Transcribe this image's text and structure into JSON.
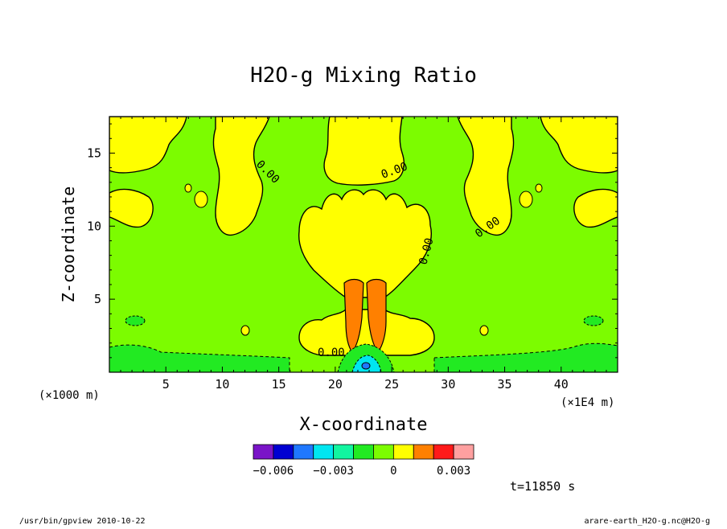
{
  "chart_data": {
    "type": "heatmap",
    "title": "H2O-g Mixing Ratio",
    "xlabel": "X-coordinate",
    "ylabel": "Z-coordinate",
    "x_unit_left": "(×1000 m)",
    "x_unit_right": "(×1E4 m)",
    "xlim": [
      0,
      45
    ],
    "ylim": [
      0,
      17.5
    ],
    "x_ticks": [
      5,
      10,
      15,
      20,
      25,
      30,
      35,
      40
    ],
    "x_tick_labels": [
      "5",
      "10",
      "15",
      "20",
      "25",
      "30",
      "35",
      "40"
    ],
    "y_ticks": [
      5,
      10,
      15
    ],
    "y_tick_labels": [
      "5",
      "10",
      "15"
    ],
    "contour_label": "0.00",
    "colorbar": {
      "levels": [
        -0.007,
        -0.006,
        -0.005,
        -0.004,
        -0.003,
        -0.002,
        -0.001,
        0,
        0.001,
        0.002,
        0.003,
        0.004
      ],
      "colors": [
        "#7a14c8",
        "#0000d2",
        "#1f78ff",
        "#00e6f0",
        "#12f5a0",
        "#22ea22",
        "#7cfc00",
        "#ffff00",
        "#ff8000",
        "#ff1a1a",
        "#ffa0a0"
      ],
      "tick_values": [
        -0.006,
        -0.003,
        0,
        0.003
      ],
      "tick_labels": [
        "−0.006",
        "−0.003",
        "0",
        "0.003"
      ]
    },
    "time_label": "t=11850 s",
    "footer_left": "/usr/bin/gpview  2010-10-22",
    "footer_right": "arare-earth_H2O-g.nc@H2O-g"
  }
}
